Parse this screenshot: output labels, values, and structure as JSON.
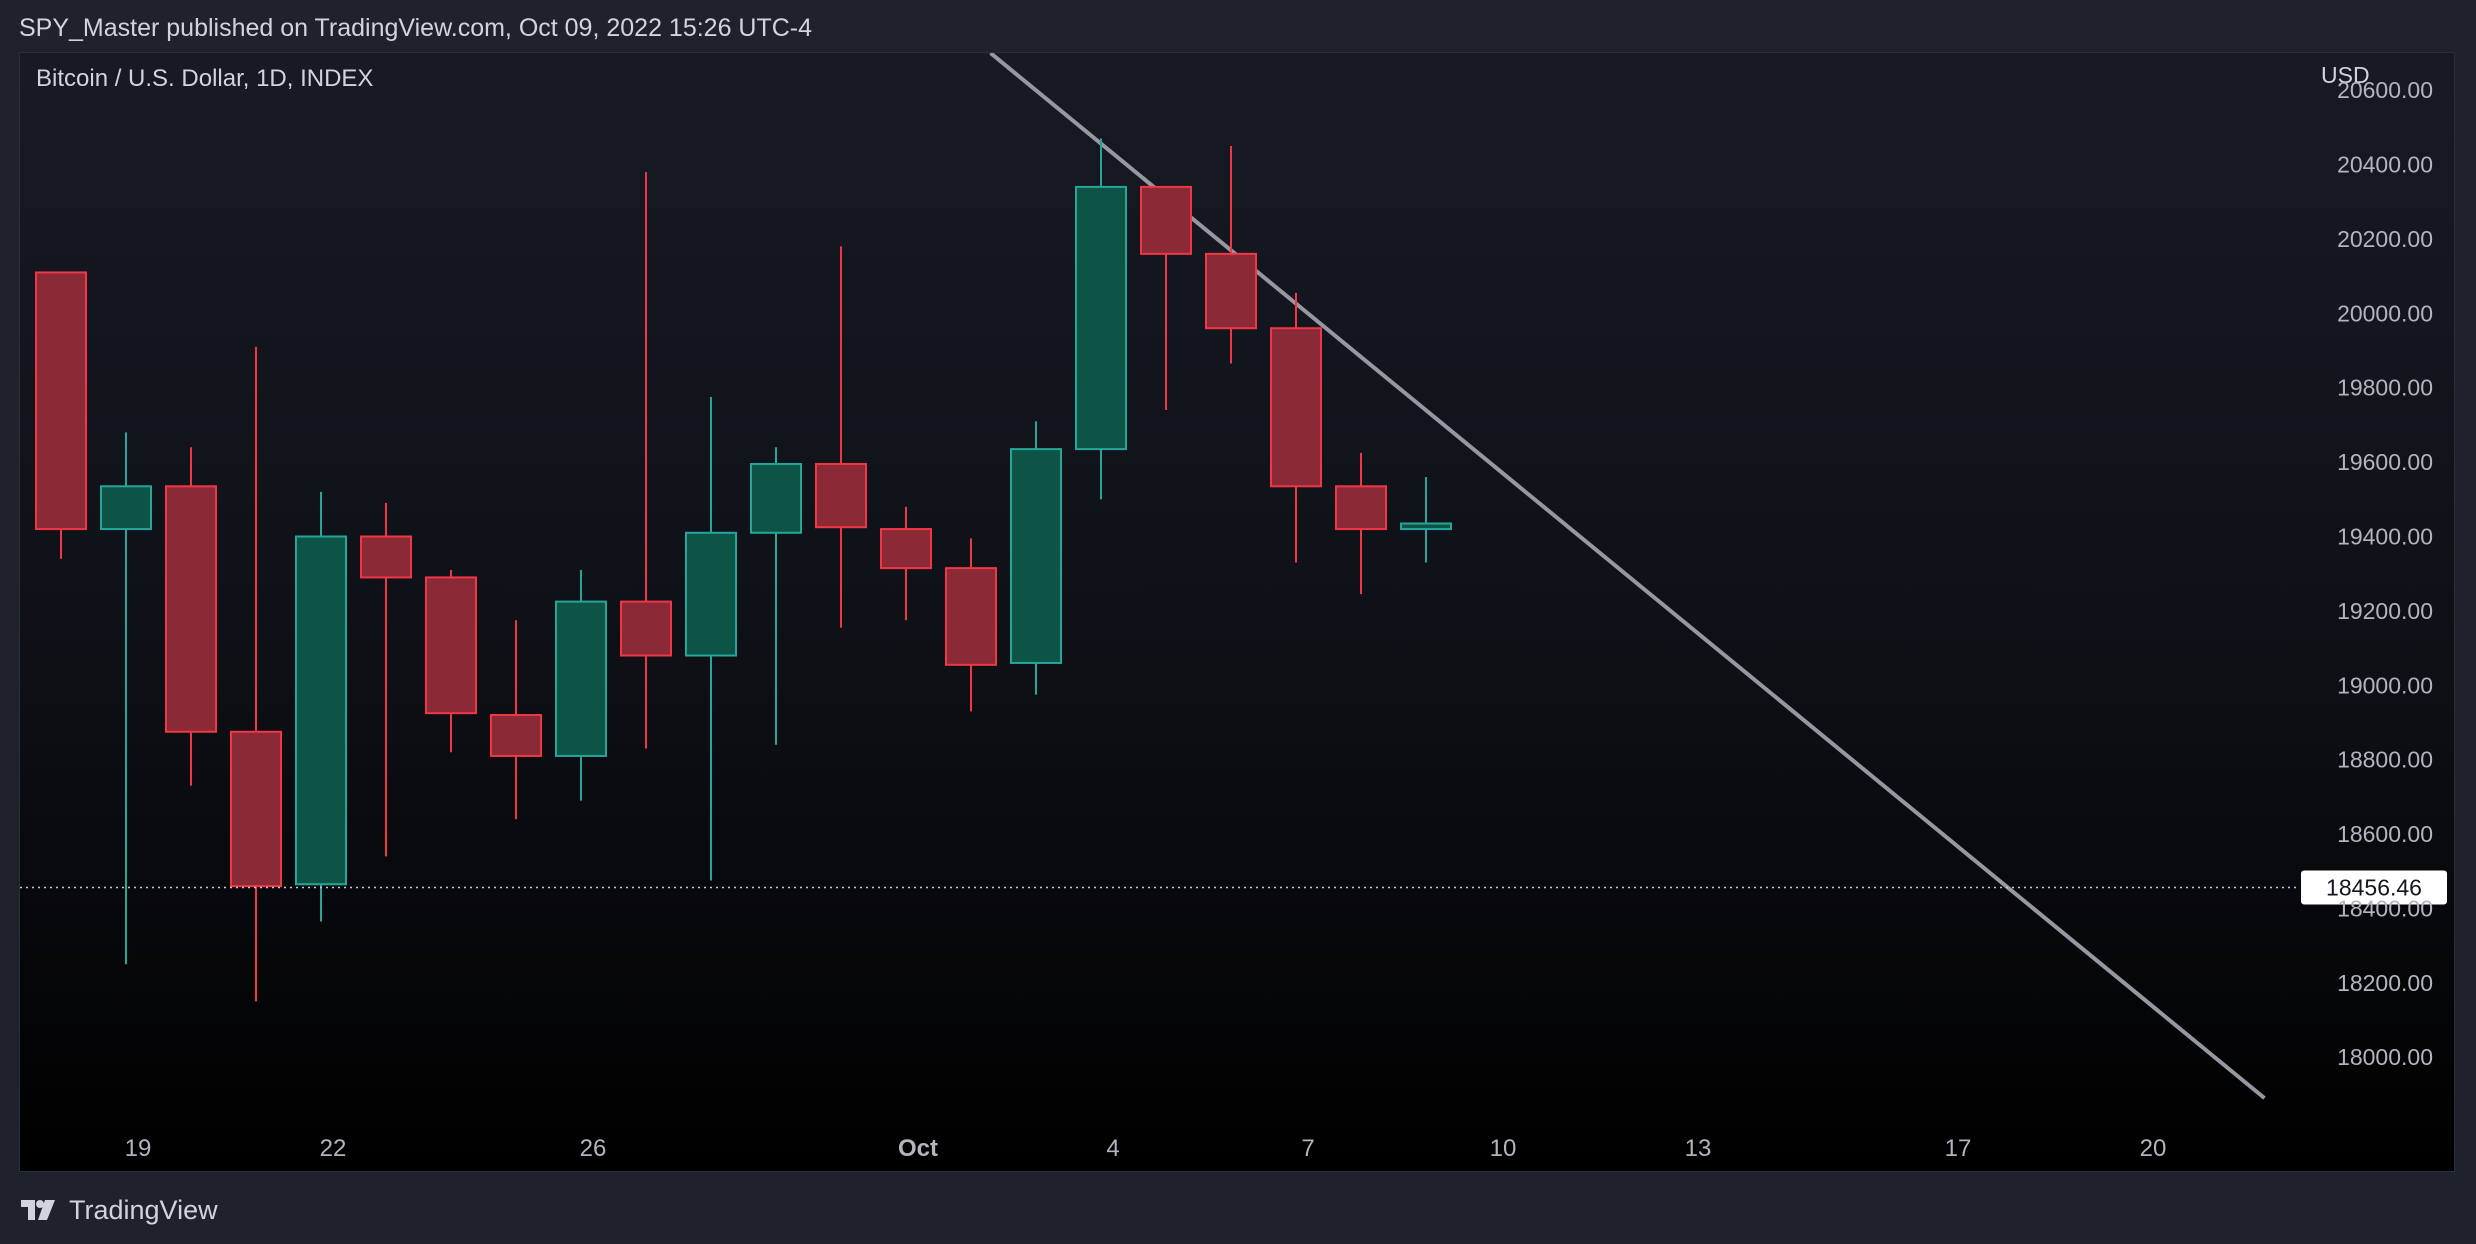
{
  "header": {
    "publisher": "SPY_Master published on TradingView.com, Oct 09, 2022 15:26 UTC-4"
  },
  "footer": {
    "brand": "TradingView",
    "logo_icon": "tradingview-logo-icon"
  },
  "chart_data": {
    "type": "candlestick",
    "title": "Bitcoin / U.S. Dollar, 1D, INDEX",
    "currency": "USD",
    "last_price": "18456.46",
    "ylim": [
      17850,
      20700
    ],
    "y_ticks": [
      "20600.00",
      "20400.00",
      "20200.00",
      "20000.00",
      "19800.00",
      "19600.00",
      "19400.00",
      "19200.00",
      "19000.00",
      "18800.00",
      "18600.00",
      "18400.00",
      "18200.00",
      "18000.00"
    ],
    "x_ticks": [
      {
        "label": "19",
        "index": 1,
        "bold": false
      },
      {
        "label": "22",
        "index": 4,
        "bold": false
      },
      {
        "label": "26",
        "index": 8,
        "bold": false
      },
      {
        "label": "Oct",
        "index": 13,
        "bold": true
      },
      {
        "label": "4",
        "index": 16,
        "bold": false
      },
      {
        "label": "7",
        "index": 19,
        "bold": false
      },
      {
        "label": "10",
        "index": 22,
        "bold": false
      },
      {
        "label": "13",
        "index": 25,
        "bold": false
      },
      {
        "label": "17",
        "index": 29,
        "bold": false
      },
      {
        "label": "20",
        "index": 32,
        "bold": false
      }
    ],
    "candles": [
      {
        "o": 20110,
        "h": 20110,
        "l": 19340,
        "c": 19420
      },
      {
        "o": 19420,
        "h": 19680,
        "l": 18250,
        "c": 19535
      },
      {
        "o": 19535,
        "h": 19640,
        "l": 18730,
        "c": 18875
      },
      {
        "o": 18875,
        "h": 19910,
        "l": 18150,
        "c": 18460
      },
      {
        "o": 18465,
        "h": 19520,
        "l": 18365,
        "c": 19400
      },
      {
        "o": 19400,
        "h": 19490,
        "l": 18540,
        "c": 19290
      },
      {
        "o": 19290,
        "h": 19310,
        "l": 18820,
        "c": 18925
      },
      {
        "o": 18920,
        "h": 19175,
        "l": 18640,
        "c": 18810
      },
      {
        "o": 18810,
        "h": 19310,
        "l": 18690,
        "c": 19225
      },
      {
        "o": 19225,
        "h": 20380,
        "l": 18830,
        "c": 19080
      },
      {
        "o": 19080,
        "h": 19775,
        "l": 18475,
        "c": 19410
      },
      {
        "o": 19410,
        "h": 19640,
        "l": 18840,
        "c": 19595
      },
      {
        "o": 19595,
        "h": 20180,
        "l": 19155,
        "c": 19425
      },
      {
        "o": 19420,
        "h": 19480,
        "l": 19175,
        "c": 19315
      },
      {
        "o": 19315,
        "h": 19395,
        "l": 18930,
        "c": 19055
      },
      {
        "o": 19060,
        "h": 19710,
        "l": 18975,
        "c": 19635
      },
      {
        "o": 19635,
        "h": 20470,
        "l": 19500,
        "c": 20340
      },
      {
        "o": 20340,
        "h": 20340,
        "l": 19740,
        "c": 20160
      },
      {
        "o": 20160,
        "h": 20450,
        "l": 19865,
        "c": 19960
      },
      {
        "o": 19960,
        "h": 20055,
        "l": 19330,
        "c": 19535
      },
      {
        "o": 19535,
        "h": 19625,
        "l": 19245,
        "c": 19420
      },
      {
        "o": 19420,
        "h": 19560,
        "l": 19330,
        "c": 19435
      }
    ],
    "trendline": [
      {
        "index": 14.3,
        "price": 20700
      },
      {
        "index": 33.9,
        "price": 17890
      }
    ],
    "colors": {
      "up_fill": "#0d5447",
      "up_border": "#26a69a",
      "down_fill": "#8b2a37",
      "down_border": "#f23645",
      "trendline": "#9598a1",
      "axis_text": "#b2b5be",
      "price_label_bg": "#ffffff",
      "price_label_text": "#131722"
    }
  }
}
